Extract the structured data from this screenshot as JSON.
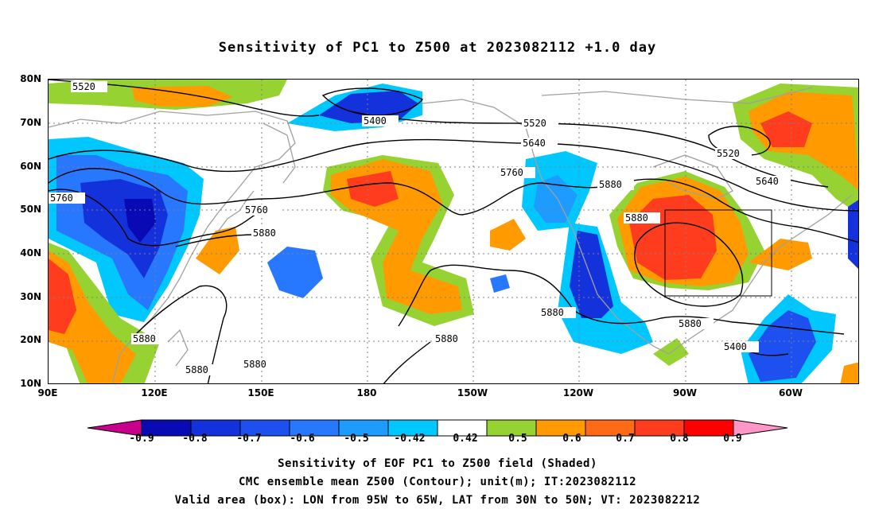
{
  "title": "Sensitivity of PC1 to Z500 at 2023082112 +1.0 day",
  "map": {
    "lat_labels": [
      "80N",
      "70N",
      "60N",
      "50N",
      "40N",
      "30N",
      "20N",
      "10N"
    ],
    "lon_labels": [
      "90E",
      "120E",
      "150E",
      "180",
      "150W",
      "120W",
      "90W",
      "60W"
    ],
    "contour_labels": [
      "5520",
      "5400",
      "5520",
      "5640",
      "5760",
      "5760",
      "5760",
      "5880",
      "5880",
      "5880",
      "5880",
      "5880",
      "5880",
      "5880",
      "5880",
      "5880",
      "5400",
      "5520",
      "5640"
    ],
    "valid_box": {
      "lon_from": "95W",
      "lon_to": "65W",
      "lat_from": "30N",
      "lat_to": "50N"
    }
  },
  "colorbar": {
    "labels": [
      "-0.9",
      "-0.8",
      "-0.7",
      "-0.6",
      "-0.5",
      "-0.42",
      "0.42",
      "0.5",
      "0.6",
      "0.7",
      "0.8",
      "0.9"
    ],
    "colors": [
      "#0a0ab4",
      "#1432dc",
      "#1e50f0",
      "#2878ff",
      "#1e9bff",
      "#00c8ff",
      "#ffffff",
      "#96d232",
      "#ff9a00",
      "#ff6a14",
      "#ff3c1e",
      "#ff0000"
    ],
    "under_color": "#c8008c",
    "over_color": "#ff96c8"
  },
  "captions": [
    "Sensitivity of EOF PC1 to Z500 field (Shaded)",
    "CMC ensemble mean Z500 (Contour); unit(m); IT:2023082112",
    "Valid area (box): LON from 95W to 65W, LAT from 30N to 50N; VT: 2023082212"
  ]
}
